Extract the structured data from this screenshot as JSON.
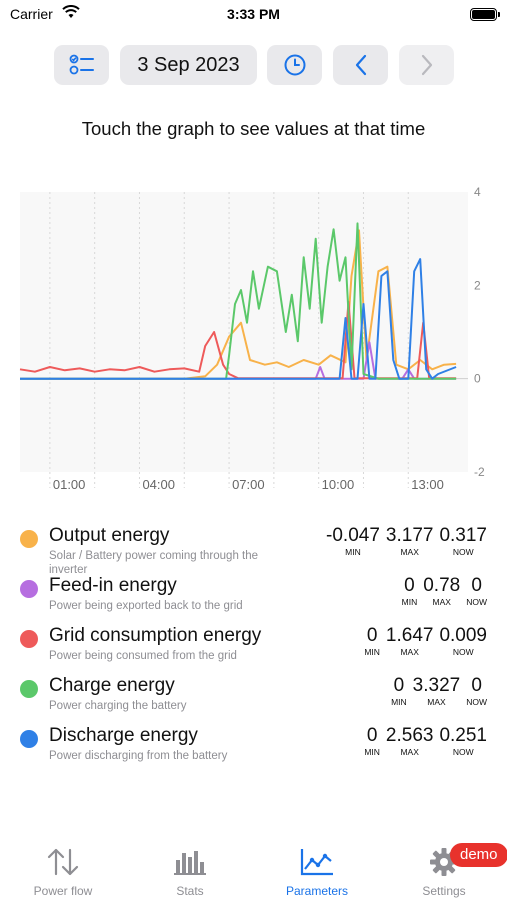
{
  "status_bar": {
    "carrier": "Carrier",
    "time": "3:33 PM"
  },
  "toolbar": {
    "date": "3 Sep 2023"
  },
  "hint": "Touch the graph to see values at that time",
  "chart_data": {
    "type": "line",
    "x_ticks": [
      "01:00",
      "04:00",
      "07:00",
      "10:00",
      "13:00"
    ],
    "y_ticks": [
      "4",
      "2",
      "0",
      "-2"
    ],
    "ylim": [
      -2,
      4
    ],
    "xlim": [
      0,
      15
    ],
    "grid": "vertical dotted",
    "series": [
      {
        "name": "Output energy",
        "color": "#f8b24a",
        "x": [
          0,
          2,
          4,
          5.5,
          6.2,
          6.6,
          7.0,
          7.4,
          7.7,
          8.2,
          8.6,
          9.0,
          9.5,
          10.0,
          10.4,
          10.9,
          11.1,
          11.35,
          11.6,
          12.0,
          12.3,
          12.6,
          13.0,
          13.4,
          13.8,
          14.2,
          14.6
        ],
        "y": [
          0,
          0,
          0,
          0,
          0.05,
          0.3,
          0.9,
          1.2,
          0.4,
          0.3,
          0.35,
          0.25,
          0.4,
          0.3,
          0.5,
          0.35,
          2.2,
          3.177,
          0.4,
          2.3,
          2.4,
          0.3,
          0.2,
          0.4,
          0.2,
          0.3,
          0.317
        ]
      },
      {
        "name": "Feed-in energy",
        "color": "#b66ee0",
        "x": [
          0,
          5,
          9.9,
          10.05,
          10.2,
          11.5,
          11.7,
          11.9,
          12.8,
          13.0,
          13.2,
          14.6
        ],
        "y": [
          0,
          0,
          0,
          0.25,
          0,
          0,
          0.78,
          0,
          0,
          0.2,
          0,
          0
        ]
      },
      {
        "name": "Grid consumption energy",
        "color": "#ee5a5a",
        "x": [
          0,
          0.5,
          1.0,
          1.5,
          2.0,
          2.5,
          3.0,
          3.5,
          4.0,
          4.5,
          5.0,
          5.5,
          6.0,
          6.2,
          6.5,
          6.8,
          7.0,
          7.3,
          10.8,
          11.0,
          11.2,
          13.3,
          13.5,
          13.7,
          14.6
        ],
        "y": [
          0.2,
          0.15,
          0.25,
          0.18,
          0.22,
          0.15,
          0.2,
          0.18,
          0.25,
          0.15,
          0.2,
          0.22,
          0.15,
          0.7,
          1.0,
          0.3,
          0.1,
          0.009,
          0.009,
          1.647,
          0.01,
          0.01,
          1.2,
          0.01,
          0.009
        ]
      },
      {
        "name": "Charge energy",
        "color": "#5bc86a",
        "x": [
          0,
          6.9,
          7.0,
          7.2,
          7.4,
          7.6,
          7.8,
          8.0,
          8.3,
          8.6,
          8.9,
          9.1,
          9.3,
          9.5,
          9.7,
          9.9,
          10.1,
          10.3,
          10.5,
          10.7,
          10.9,
          11.1,
          11.3,
          11.5,
          12.0,
          14.6
        ],
        "y": [
          0,
          0,
          0.5,
          1.6,
          1.9,
          1.2,
          2.3,
          1.5,
          2.4,
          2.3,
          1.0,
          1.8,
          0.8,
          2.6,
          1.5,
          3.0,
          1.2,
          2.4,
          3.2,
          2.1,
          2.6,
          0.2,
          3.327,
          0.1,
          0,
          0
        ]
      },
      {
        "name": "Discharge energy",
        "color": "#2f80e6",
        "x": [
          0,
          10.7,
          10.9,
          11.1,
          11.3,
          11.5,
          11.7,
          11.9,
          12.1,
          12.3,
          12.5,
          12.7,
          13.0,
          13.2,
          13.4,
          13.6,
          13.8,
          14.0,
          14.6
        ],
        "y": [
          0,
          0,
          1.3,
          0,
          0,
          1.6,
          0,
          0,
          2.2,
          2.3,
          0.4,
          0,
          0,
          2.3,
          2.563,
          0.2,
          0,
          0.1,
          0.251
        ]
      }
    ]
  },
  "legend": [
    {
      "name": "Output energy",
      "desc": "Solar / Battery power coming through the inverter",
      "color": "#f8b24a",
      "min": "-0.047",
      "max": "3.177",
      "now": "0.317"
    },
    {
      "name": "Feed-in energy",
      "desc": "Power being exported back to the grid",
      "color": "#b66ee0",
      "min": "0",
      "max": "0.78",
      "now": "0"
    },
    {
      "name": "Grid consumption energy",
      "desc": "Power being consumed from the grid",
      "color": "#ee5a5a",
      "min": "0",
      "max": "1.647",
      "now": "0.009"
    },
    {
      "name": "Charge energy",
      "desc": "Power charging the battery",
      "color": "#5bc86a",
      "min": "0",
      "max": "3.327",
      "now": "0"
    },
    {
      "name": "Discharge energy",
      "desc": "Power discharging from the battery",
      "color": "#2f80e6",
      "min": "0",
      "max": "2.563",
      "now": "0.251"
    }
  ],
  "labels": {
    "min": "MIN",
    "max": "MAX",
    "now": "NOW"
  },
  "tabs": [
    {
      "label": "Power flow",
      "icon": "arrows-up-down-icon"
    },
    {
      "label": "Stats",
      "icon": "bar-chart-icon"
    },
    {
      "label": "Parameters",
      "icon": "line-chart-icon",
      "active": true
    },
    {
      "label": "Settings",
      "icon": "gear-icon"
    }
  ],
  "badge": "demo",
  "colors": {
    "accent": "#1a73e8",
    "badge": "#e8322c"
  }
}
